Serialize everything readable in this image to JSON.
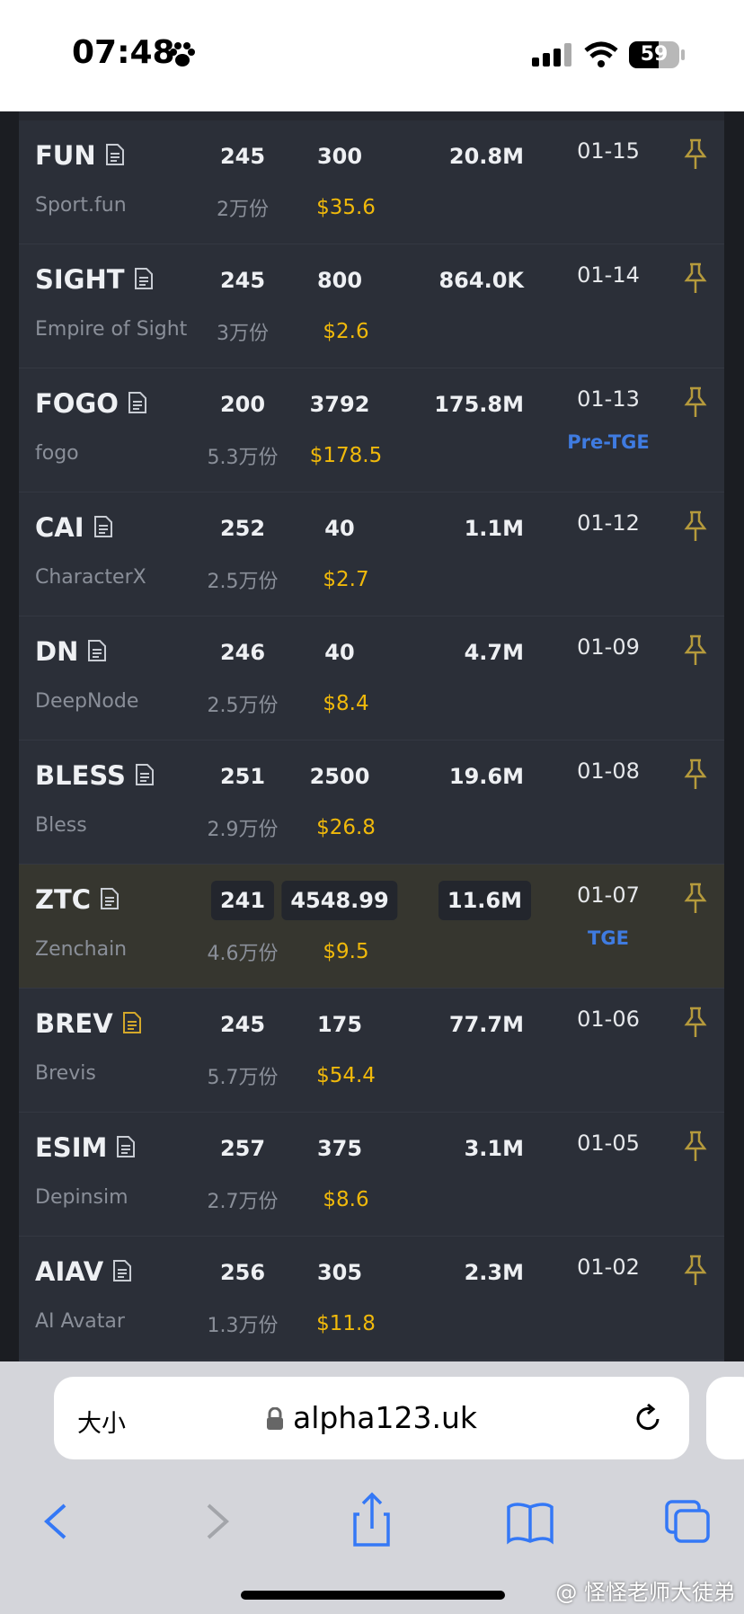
{
  "status_bar": {
    "time": "07:48",
    "battery": "59"
  },
  "table": {
    "rows": [
      {
        "symbol": "FUN",
        "name": "Sport.fun",
        "count": "245",
        "shares": "2万份",
        "amount": "300",
        "price": "$35.6",
        "volume": "20.8M",
        "date": "01-15"
      },
      {
        "symbol": "SIGHT",
        "name": "Empire of Sight",
        "count": "245",
        "shares": "3万份",
        "amount": "800",
        "price": "$2.6",
        "volume": "864.0K",
        "date": "01-14"
      },
      {
        "symbol": "FOGO",
        "name": "fogo",
        "count": "200",
        "shares": "5.3万份",
        "amount": "3792",
        "price": "$178.5",
        "volume": "175.8M",
        "date": "01-13",
        "tag": "Pre-TGE"
      },
      {
        "symbol": "CAI",
        "name": "CharacterX",
        "count": "252",
        "shares": "2.5万份",
        "amount": "40",
        "price": "$2.7",
        "volume": "1.1M",
        "date": "01-12"
      },
      {
        "symbol": "DN",
        "name": "DeepNode",
        "count": "246",
        "shares": "2.5万份",
        "amount": "40",
        "price": "$8.4",
        "volume": "4.7M",
        "date": "01-09"
      },
      {
        "symbol": "BLESS",
        "name": "Bless",
        "count": "251",
        "shares": "2.9万份",
        "amount": "2500",
        "price": "$26.8",
        "volume": "19.6M",
        "date": "01-08"
      },
      {
        "symbol": "ZTC",
        "name": "Zenchain",
        "count": "241",
        "shares": "4.6万份",
        "amount": "4548.99",
        "price": "$9.5",
        "volume": "11.6M",
        "date": "01-07",
        "tag": "TGE",
        "highlighted": true
      },
      {
        "symbol": "BREV",
        "name": "Brevis",
        "count": "245",
        "shares": "5.7万份",
        "amount": "175",
        "price": "$54.4",
        "volume": "77.7M",
        "date": "01-06"
      },
      {
        "symbol": "ESIM",
        "name": "Depinsim",
        "count": "257",
        "shares": "2.7万份",
        "amount": "375",
        "price": "$8.6",
        "volume": "3.1M",
        "date": "01-05"
      },
      {
        "symbol": "AIAV",
        "name": "AI Avatar",
        "count": "256",
        "shares": "1.3万份",
        "amount": "305",
        "price": "$11.8",
        "volume": "2.3M",
        "date": "01-02"
      }
    ]
  },
  "browser": {
    "text_size": "大小",
    "url": "alpha123.uk"
  },
  "watermark": "@ 怪怪老师大徒弟"
}
